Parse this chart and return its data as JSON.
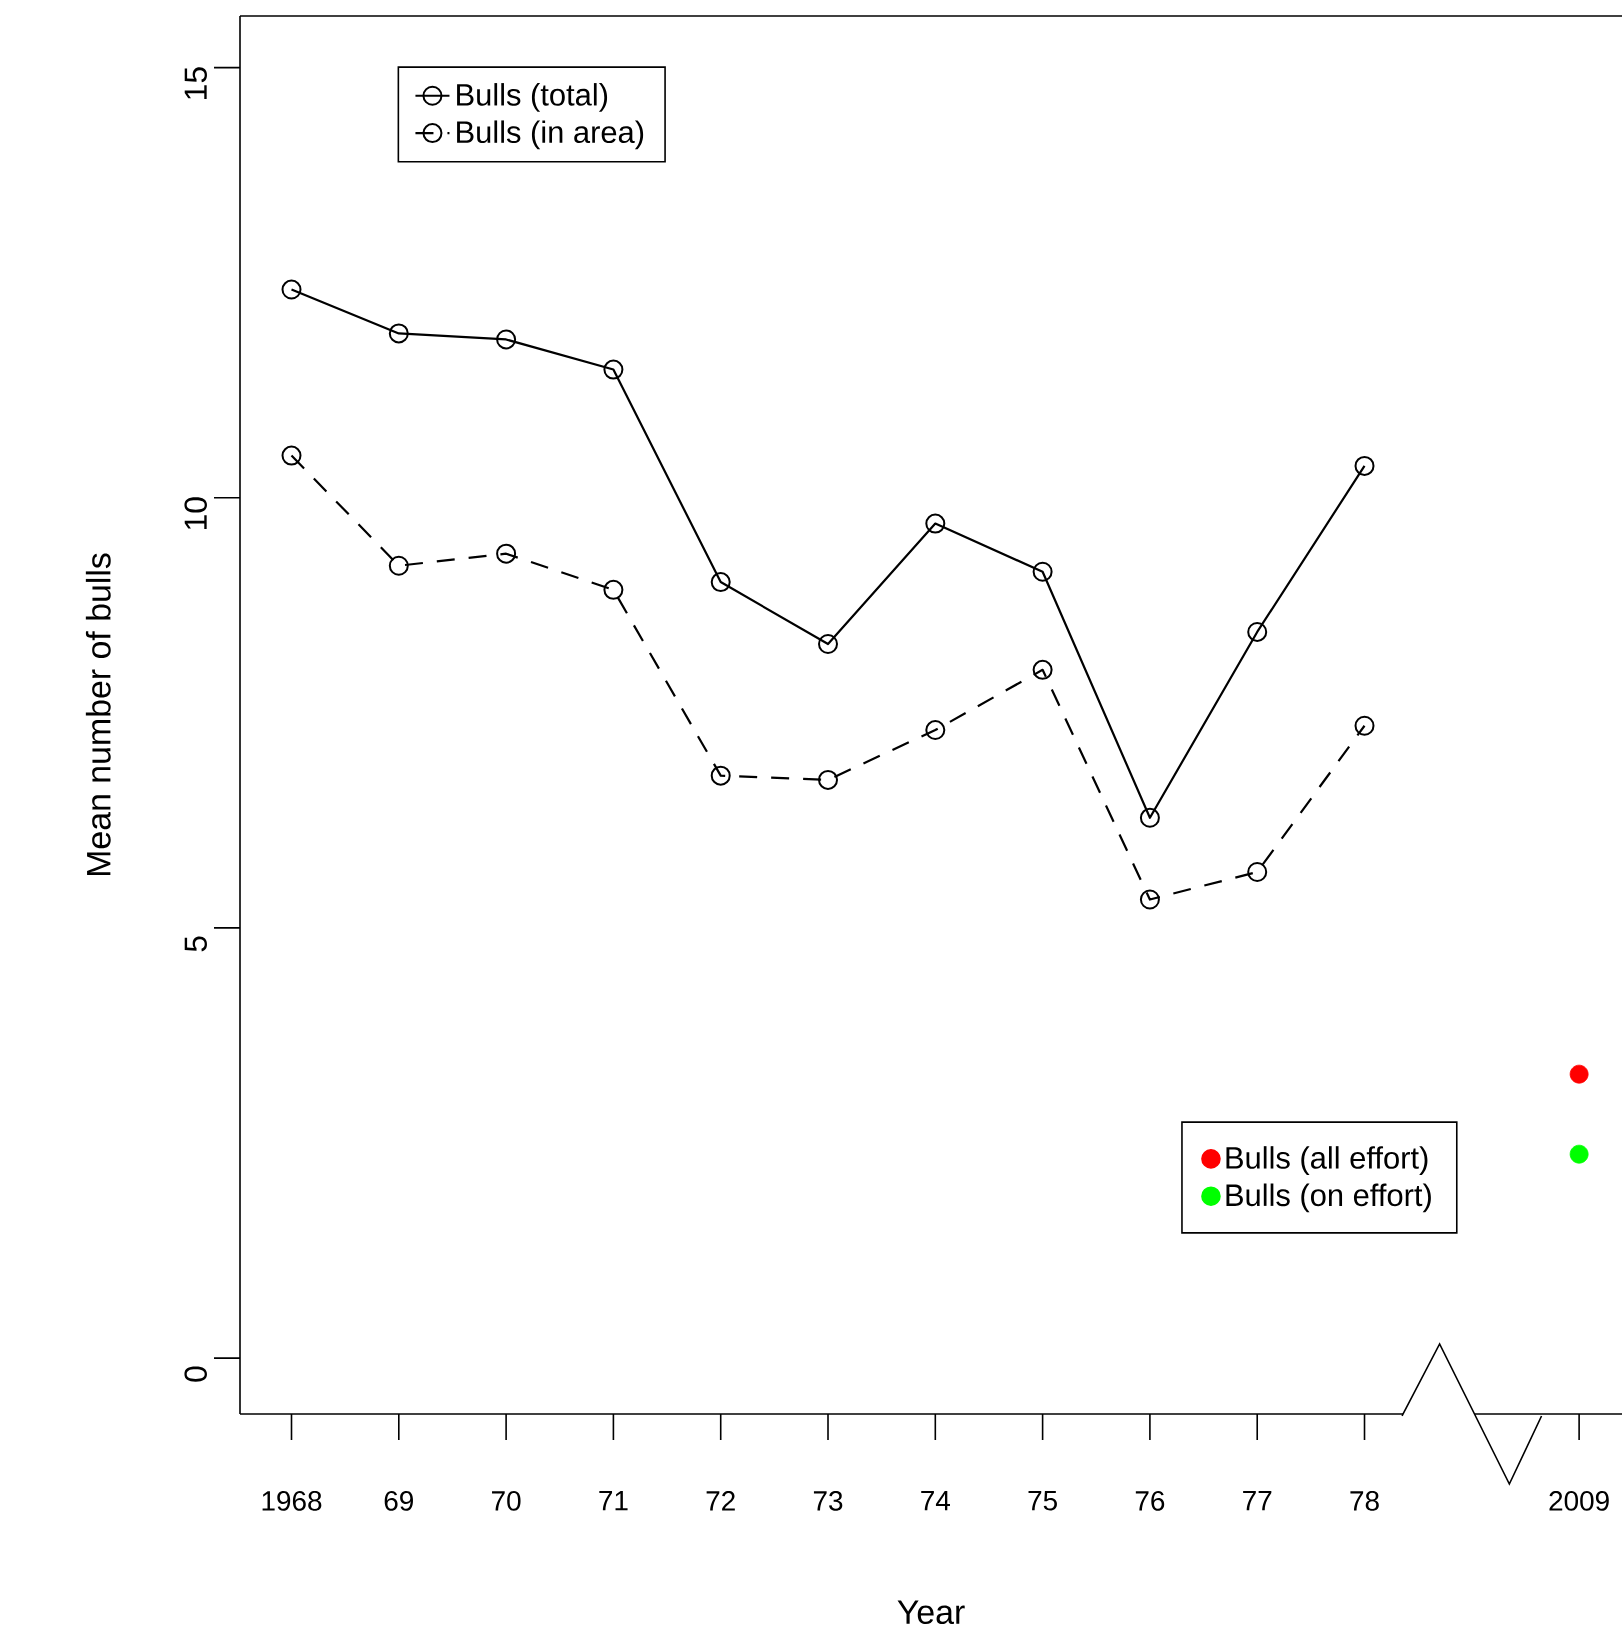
{
  "chart_data": {
    "type": "line",
    "xlabel": "Year",
    "ylabel": "Mean number of bulls",
    "categories": [
      "1968",
      "69",
      "70",
      "71",
      "72",
      "73",
      "74",
      "75",
      "76",
      "77",
      "78",
      null,
      "2009"
    ],
    "series": [
      {
        "name": "Bulls (total)",
        "type": "line",
        "color": "#000000",
        "line_style": "solid",
        "values": [
          12.42,
          11.91,
          11.84,
          11.49,
          9.02,
          8.3,
          9.7,
          9.14,
          6.28,
          8.44,
          10.37,
          null,
          null
        ]
      },
      {
        "name": "Bulls (in area)",
        "type": "line",
        "color": "#000000",
        "line_style": "dashed",
        "values": [
          10.49,
          9.21,
          9.35,
          8.93,
          6.77,
          6.72,
          7.3,
          8.0,
          5.33,
          5.65,
          7.35,
          null,
          null
        ]
      },
      {
        "name": "Bulls (all effort)",
        "type": "scatter",
        "color": "#ff0000",
        "values": [
          null,
          null,
          null,
          null,
          null,
          null,
          null,
          null,
          null,
          null,
          null,
          null,
          3.3
        ]
      },
      {
        "name": "Bulls (on effort)",
        "type": "scatter",
        "color": "#00ff00",
        "values": [
          null,
          null,
          null,
          null,
          null,
          null,
          null,
          null,
          null,
          null,
          null,
          null,
          2.37
        ]
      }
    ],
    "ylim": [
      -0.65,
      15.6
    ],
    "yticks": [
      0,
      5,
      10,
      15
    ],
    "marker": "circle",
    "legend": "top left",
    "grid": false
  }
}
